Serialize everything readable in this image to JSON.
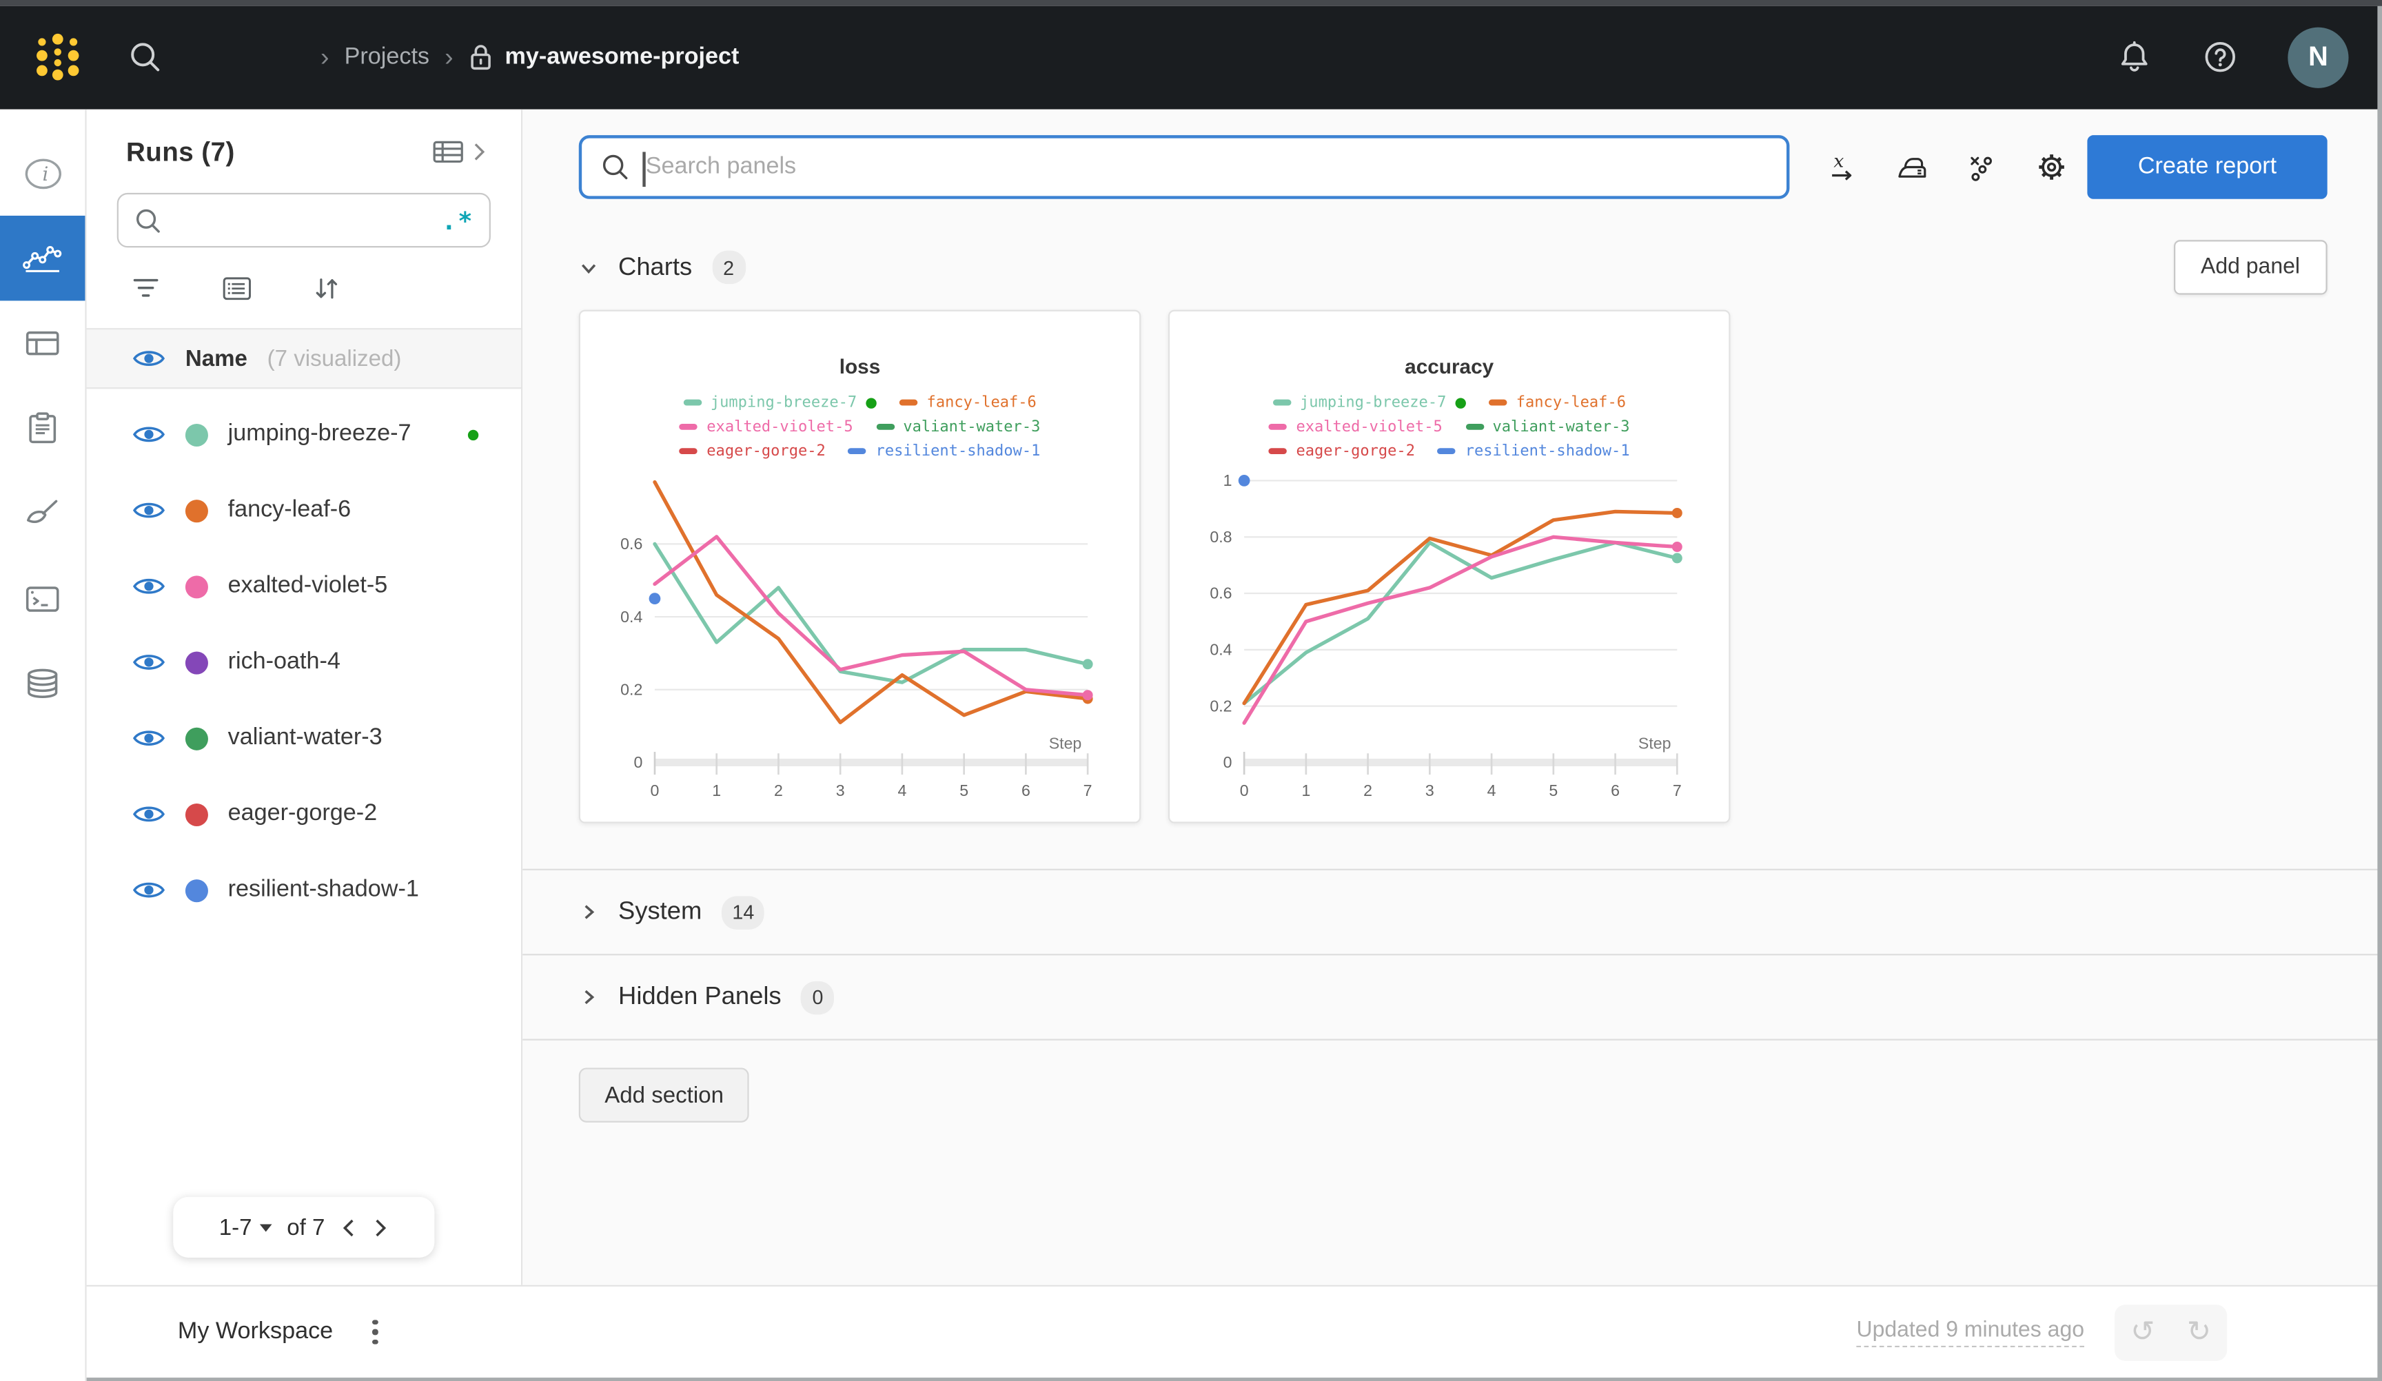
{
  "topbar": {
    "breadcrumb": {
      "projects": "Projects",
      "project": "my-awesome-project"
    },
    "avatar_initial": "N"
  },
  "sidebar": {
    "title": "Runs (7)",
    "search_placeholder": "",
    "regex_label": ".*",
    "header": {
      "name": "Name",
      "visualized": "(7 visualized)"
    },
    "runs": [
      {
        "name": "jumping-breeze-7",
        "live": true
      },
      {
        "name": "fancy-leaf-6",
        "live": false
      },
      {
        "name": "exalted-violet-5",
        "live": false
      },
      {
        "name": "rich-oath-4",
        "live": false
      },
      {
        "name": "valiant-water-3",
        "live": false
      },
      {
        "name": "eager-gorge-2",
        "live": false
      },
      {
        "name": "resilient-shadow-1",
        "live": false
      }
    ],
    "pagination": {
      "range": "1-7",
      "of": "of 7"
    }
  },
  "main": {
    "search": {
      "placeholder": "Search panels"
    },
    "create_report": "Create report",
    "add_panel": "Add panel",
    "add_section": "Add section",
    "sections": [
      {
        "label": "Charts",
        "count": "2"
      },
      {
        "label": "System",
        "count": "14"
      },
      {
        "label": "Hidden Panels",
        "count": "0"
      }
    ]
  },
  "bottombar": {
    "workspace": "My Workspace",
    "updated": "Updated 9 minutes ago"
  },
  "colors": {
    "accent_blue": "#2e7ad6",
    "rail_active": "#2e78c7",
    "live_dot": "#16a016",
    "regex_teal": "#0ea5b5",
    "runs": {
      "jumping-breeze-7": "#7cc7ab",
      "fancy-leaf-6": "#e0712c",
      "exalted-violet-5": "#ee6ba8",
      "rich-oath-4": "#8447b8",
      "valiant-water-3": "#3f9e5d",
      "eager-gorge-2": "#d6494a",
      "resilient-shadow-1": "#5387dd"
    }
  },
  "chart_data": [
    {
      "type": "line",
      "title": "loss",
      "xlabel": "Step",
      "x": [
        0,
        1,
        2,
        3,
        4,
        5,
        6,
        7
      ],
      "xlim": [
        0,
        7
      ],
      "y_ticks": [
        0,
        0.2,
        0.4,
        0.6
      ],
      "y_axis_top": 0.805,
      "grid": true,
      "legend_rows": [
        [
          "jumping-breeze-7",
          "fancy-leaf-6"
        ],
        [
          "exalted-violet-5",
          "valiant-water-3"
        ],
        [
          "eager-gorge-2",
          "resilient-shadow-1"
        ]
      ],
      "live_runs": [
        "jumping-breeze-7"
      ],
      "series": [
        {
          "name": "jumping-breeze-7",
          "values": [
            0.6,
            0.33,
            0.48,
            0.25,
            0.22,
            0.31,
            0.31,
            0.27
          ],
          "end_dot": true
        },
        {
          "name": "fancy-leaf-6",
          "values": [
            0.77,
            0.46,
            0.34,
            0.11,
            0.24,
            0.13,
            0.195,
            0.175
          ],
          "end_dot": true
        },
        {
          "name": "exalted-violet-5",
          "values": [
            0.49,
            0.62,
            0.41,
            0.255,
            0.295,
            0.305,
            0.2,
            0.185
          ],
          "end_dot": true
        }
      ],
      "point_series": [
        {
          "name": "resilient-shadow-1",
          "points": [
            {
              "x": 0,
              "y": 0.45
            }
          ]
        }
      ]
    },
    {
      "type": "line",
      "title": "accuracy",
      "xlabel": "Step",
      "x": [
        0,
        1,
        2,
        3,
        4,
        5,
        6,
        7
      ],
      "xlim": [
        0,
        7
      ],
      "y_ticks": [
        0,
        0.2,
        0.4,
        0.6,
        0.8,
        1
      ],
      "y_axis_top": 1.04,
      "grid": true,
      "legend_rows": [
        [
          "jumping-breeze-7",
          "fancy-leaf-6"
        ],
        [
          "exalted-violet-5",
          "valiant-water-3"
        ],
        [
          "eager-gorge-2",
          "resilient-shadow-1"
        ]
      ],
      "live_runs": [
        "jumping-breeze-7"
      ],
      "series": [
        {
          "name": "jumping-breeze-7",
          "values": [
            0.21,
            0.39,
            0.51,
            0.78,
            0.655,
            0.72,
            0.78,
            0.725
          ],
          "end_dot": true
        },
        {
          "name": "fancy-leaf-6",
          "values": [
            0.21,
            0.56,
            0.61,
            0.795,
            0.735,
            0.86,
            0.89,
            0.885
          ],
          "end_dot": true
        },
        {
          "name": "exalted-violet-5",
          "values": [
            0.14,
            0.5,
            0.565,
            0.62,
            0.73,
            0.8,
            0.78,
            0.765
          ],
          "end_dot": true
        }
      ],
      "point_series": [
        {
          "name": "resilient-shadow-1",
          "points": [
            {
              "x": 0,
              "y": 1
            }
          ]
        }
      ]
    }
  ]
}
